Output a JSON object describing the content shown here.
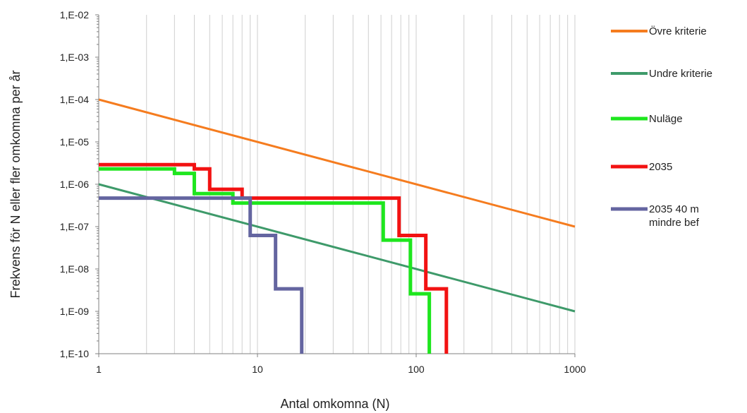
{
  "chart_data": {
    "type": "line",
    "title": "",
    "xlabel": "Antal omkomna (N)",
    "ylabel": "Frekvens för N eller fler omkomna per år",
    "x_scale": "log",
    "y_scale": "log",
    "xlim": [
      1,
      1000
    ],
    "ylim": [
      1e-10,
      0.01
    ],
    "x_ticks": [
      1,
      10,
      100,
      1000
    ],
    "x_tick_labels": [
      "1",
      "10",
      "100",
      "1000"
    ],
    "y_ticks": [
      0.01,
      0.001,
      0.0001,
      1e-05,
      1e-06,
      1e-07,
      1e-08,
      1e-09,
      1e-10
    ],
    "y_tick_labels": [
      "1,E-02",
      "1,E-03",
      "1,E-04",
      "1,E-05",
      "1,E-06",
      "1,E-07",
      "1,E-08",
      "1,E-09",
      "1,E-10"
    ],
    "grid": "vertical minor lines",
    "legend_position": "right",
    "series": [
      {
        "name": "Övre kriterie",
        "color": "#f57c1f",
        "style": "line",
        "x": [
          1,
          1000
        ],
        "y": [
          0.0001,
          1e-07
        ]
      },
      {
        "name": "Undre kriterie",
        "color": "#3e9a6a",
        "style": "line",
        "x": [
          1,
          1000
        ],
        "y": [
          1e-06,
          1e-09
        ]
      },
      {
        "name": "Nuläge",
        "color": "#1ee61e",
        "style": "step",
        "x": [
          1,
          3,
          3,
          4,
          4,
          7,
          7,
          62,
          62,
          92,
          92,
          121,
          121
        ],
        "y": [
          2.3e-06,
          2.3e-06,
          1.8e-06,
          1.8e-06,
          6e-07,
          6e-07,
          3.6e-07,
          3.6e-07,
          4.8e-08,
          4.8e-08,
          2.6e-09,
          2.6e-09,
          1e-10
        ]
      },
      {
        "name": "2035",
        "color": "#f21212",
        "style": "step",
        "x": [
          1,
          4,
          4,
          5,
          5,
          8,
          8,
          78,
          78,
          115,
          115,
          155,
          155
        ],
        "y": [
          2.9e-06,
          2.9e-06,
          2.3e-06,
          2.3e-06,
          7.6e-07,
          7.6e-07,
          4.7e-07,
          4.7e-07,
          6.2e-08,
          6.2e-08,
          3.4e-09,
          3.4e-09,
          1e-10
        ]
      },
      {
        "name": "2035 40 m mindre bef",
        "color": "#6465a0",
        "style": "step",
        "x": [
          1,
          9,
          9,
          13,
          13,
          19,
          19
        ],
        "y": [
          4.7e-07,
          4.7e-07,
          6.2e-08,
          6.2e-08,
          3.4e-09,
          3.4e-09,
          1e-10
        ]
      }
    ]
  }
}
